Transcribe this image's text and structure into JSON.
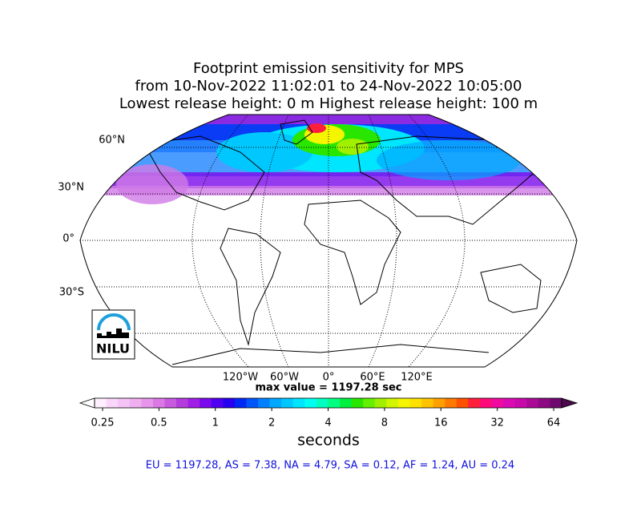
{
  "title_lines": [
    "Footprint emission sensitivity for MPS",
    "from 10-Nov-2022 11:02:01 to 24-Nov-2022 10:05:00",
    "Lowest release height: 0 m       Highest release height: 100 m"
  ],
  "map": {
    "lat_labels": [
      "60°N",
      "30°N",
      "0°",
      "30°S"
    ],
    "lon_labels": [
      "120°W",
      "60°W",
      "0°",
      "60°E",
      "120°E"
    ]
  },
  "logo": "NILU",
  "max_value_text": "max value = 1197.28 sec",
  "colorbar": {
    "scale": "log",
    "lim": [
      0.25,
      64
    ],
    "ticks": [
      0.25,
      0.5,
      1,
      2,
      4,
      8,
      16,
      32,
      64
    ],
    "label": "seconds",
    "under_color": "#ffffff",
    "over_color": "#4b0a4b",
    "colors": [
      "#fff0ff",
      "#fad7fa",
      "#f5c3f5",
      "#f0aff0",
      "#e896ec",
      "#dc78e6",
      "#c85ae0",
      "#b43cdc",
      "#a01ee6",
      "#7a0aeb",
      "#5000f0",
      "#2800f0",
      "#0028f5",
      "#0055fa",
      "#0080ff",
      "#00a8ff",
      "#00c8ff",
      "#00e6ff",
      "#00fff0",
      "#00ffc0",
      "#00ff80",
      "#00f040",
      "#28e600",
      "#64f000",
      "#a0f000",
      "#d2f500",
      "#f5f500",
      "#ffe100",
      "#ffc300",
      "#ffa000",
      "#ff7800",
      "#ff5000",
      "#ff1e3c",
      "#ff0a78",
      "#f00aa0",
      "#dc0ab4",
      "#c80aaa",
      "#aa0a96",
      "#8c0a82",
      "#6e0a6e"
    ]
  },
  "region_totals": "EU = 1197.28,  AS = 7.38,  NA = 4.79,  SA = 0.12,  AF = 1.24,  AU = 0.24"
}
